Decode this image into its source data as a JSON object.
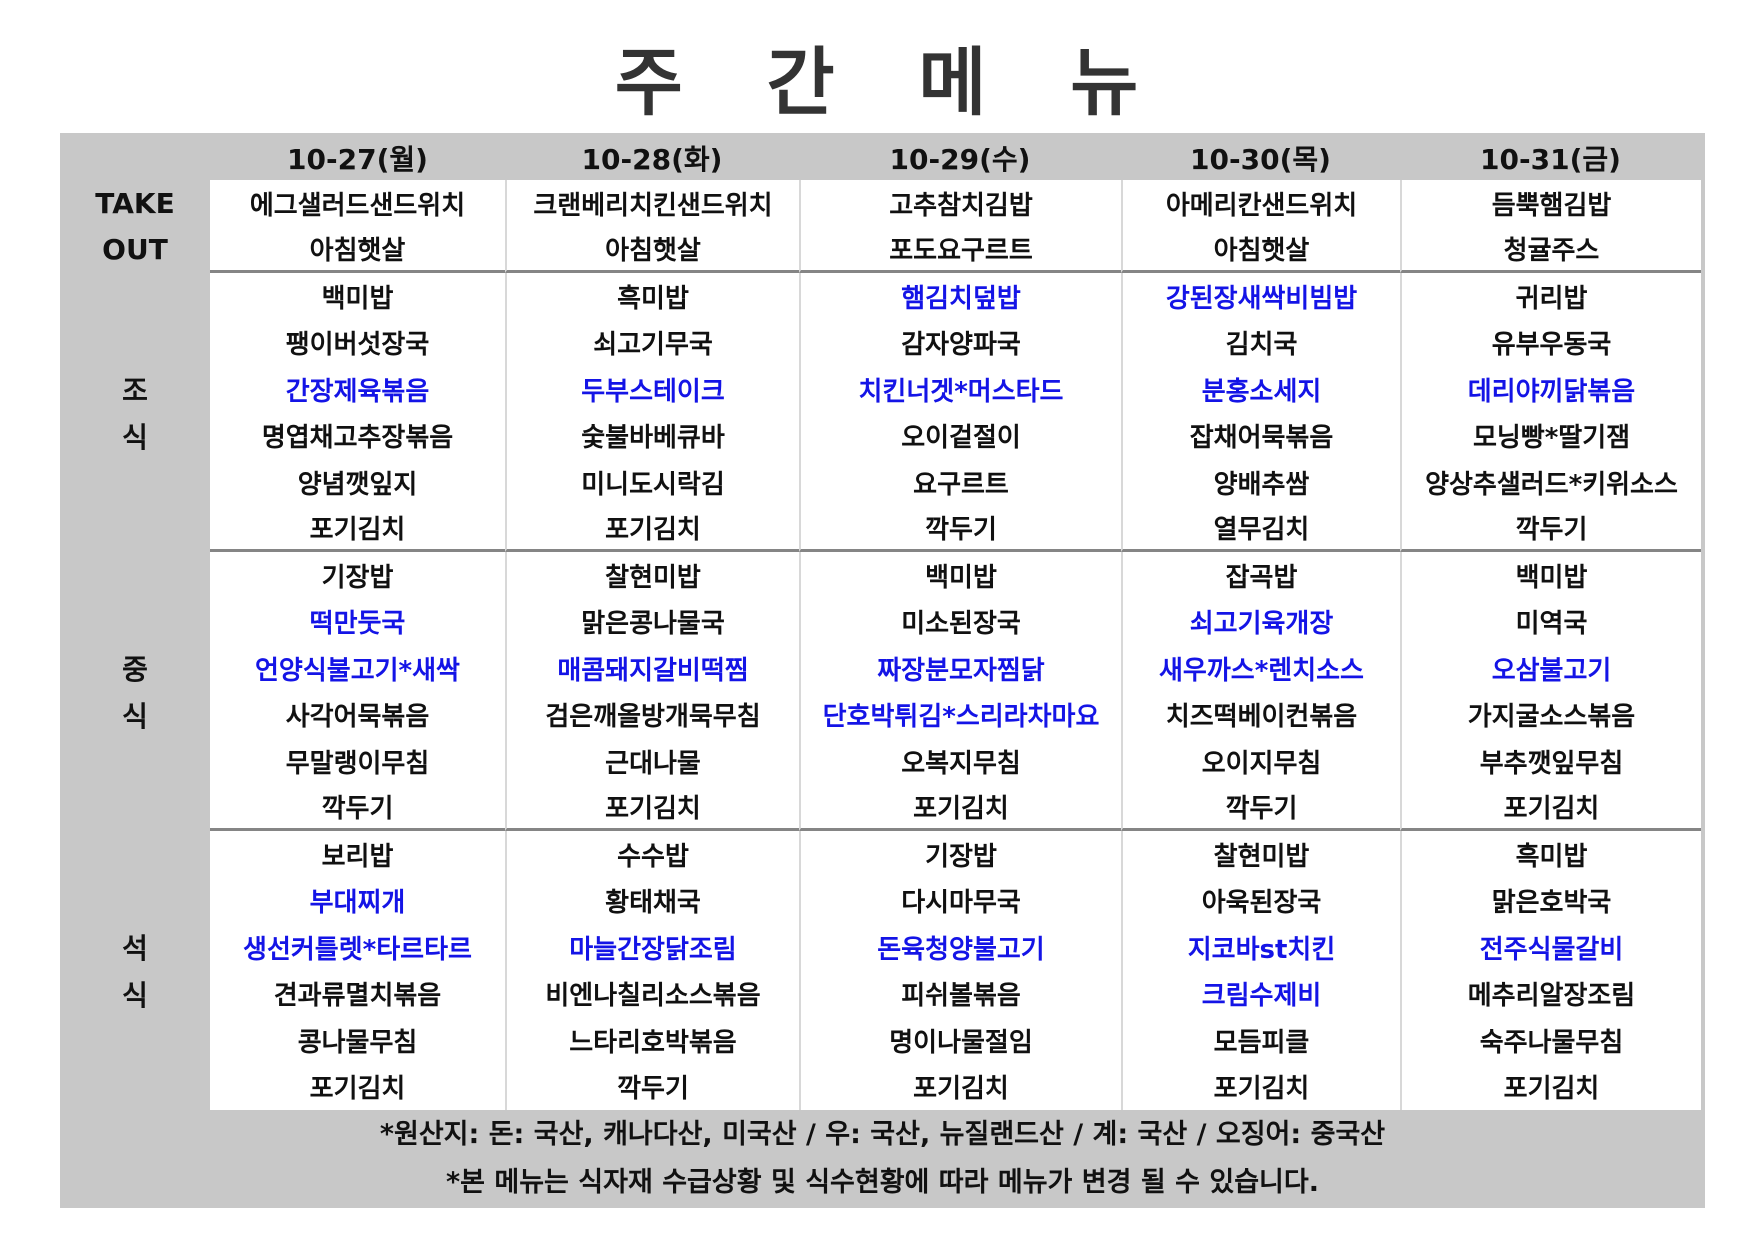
{
  "title": "주 간 메 뉴",
  "days": [
    "10-27(월)",
    "10-28(화)",
    "10-29(수)",
    "10-30(목)",
    "10-31(금)"
  ],
  "colors": {
    "highlight": "#1414e6",
    "band": "#c8c8c8",
    "divider": "#858585"
  },
  "sections": [
    {
      "id": "takeout",
      "label": [
        "TAKE",
        "OUT"
      ],
      "days": [
        [
          {
            "name": "에그샐러드샌드위치"
          },
          {
            "name": "아침햇살"
          }
        ],
        [
          {
            "name": "크랜베리치킨샌드위치"
          },
          {
            "name": "아침햇살"
          }
        ],
        [
          {
            "name": "고추참치김밥"
          },
          {
            "name": "포도요구르트"
          }
        ],
        [
          {
            "name": "아메리칸샌드위치"
          },
          {
            "name": "아침햇살"
          }
        ],
        [
          {
            "name": "듬뿍햄김밥"
          },
          {
            "name": "청귤주스"
          }
        ]
      ]
    },
    {
      "id": "breakfast",
      "label": [
        "조",
        "식"
      ],
      "days": [
        [
          {
            "name": "백미밥"
          },
          {
            "name": "팽이버섯장국"
          },
          {
            "name": "간장제육볶음",
            "blue": true
          },
          {
            "name": "명엽채고추장볶음"
          },
          {
            "name": "양념깻잎지"
          },
          {
            "name": "포기김치"
          }
        ],
        [
          {
            "name": "흑미밥"
          },
          {
            "name": "쇠고기무국"
          },
          {
            "name": "두부스테이크",
            "blue": true
          },
          {
            "name": "숯불바베큐바"
          },
          {
            "name": "미니도시락김"
          },
          {
            "name": "포기김치"
          }
        ],
        [
          {
            "name": "햄김치덮밥",
            "blue": true
          },
          {
            "name": "감자양파국"
          },
          {
            "name": "치킨너겟*머스타드",
            "blue": true
          },
          {
            "name": "오이겉절이"
          },
          {
            "name": "요구르트"
          },
          {
            "name": "깍두기"
          }
        ],
        [
          {
            "name": "강된장새싹비빔밥",
            "blue": true
          },
          {
            "name": "김치국"
          },
          {
            "name": "분홍소세지",
            "blue": true
          },
          {
            "name": "잡채어묵볶음"
          },
          {
            "name": "양배추쌈"
          },
          {
            "name": "열무김치"
          }
        ],
        [
          {
            "name": "귀리밥"
          },
          {
            "name": "유부우동국"
          },
          {
            "name": "데리야끼닭볶음",
            "blue": true
          },
          {
            "name": "모닝빵*딸기잼"
          },
          {
            "name": "양상추샐러드*키위소스"
          },
          {
            "name": "깍두기"
          }
        ]
      ]
    },
    {
      "id": "lunch",
      "label": [
        "중",
        "식"
      ],
      "days": [
        [
          {
            "name": "기장밥"
          },
          {
            "name": "떡만둣국",
            "blue": true
          },
          {
            "name": "언양식불고기*새싹",
            "blue": true
          },
          {
            "name": "사각어묵볶음"
          },
          {
            "name": "무말랭이무침"
          },
          {
            "name": "깍두기"
          }
        ],
        [
          {
            "name": "찰현미밥"
          },
          {
            "name": "맑은콩나물국"
          },
          {
            "name": "매콤돼지갈비떡찜",
            "blue": true
          },
          {
            "name": "검은깨올방개묵무침"
          },
          {
            "name": "근대나물"
          },
          {
            "name": "포기김치"
          }
        ],
        [
          {
            "name": "백미밥"
          },
          {
            "name": "미소된장국"
          },
          {
            "name": "짜장분모자찜닭",
            "blue": true
          },
          {
            "name": "단호박튀김*스리라차마요",
            "blue": true
          },
          {
            "name": "오복지무침"
          },
          {
            "name": "포기김치"
          }
        ],
        [
          {
            "name": "잡곡밥"
          },
          {
            "name": "쇠고기육개장",
            "blue": true
          },
          {
            "name": "새우까스*렌치소스",
            "blue": true
          },
          {
            "name": "치즈떡베이컨볶음"
          },
          {
            "name": "오이지무침"
          },
          {
            "name": "깍두기"
          }
        ],
        [
          {
            "name": "백미밥"
          },
          {
            "name": "미역국"
          },
          {
            "name": "오삼불고기",
            "blue": true
          },
          {
            "name": "가지굴소스볶음"
          },
          {
            "name": "부추깻잎무침"
          },
          {
            "name": "포기김치"
          }
        ]
      ]
    },
    {
      "id": "dinner",
      "label": [
        "석",
        "식"
      ],
      "days": [
        [
          {
            "name": "보리밥"
          },
          {
            "name": "부대찌개",
            "blue": true
          },
          {
            "name": "생선커틀렛*타르타르",
            "blue": true
          },
          {
            "name": "견과류멸치볶음"
          },
          {
            "name": "콩나물무침"
          },
          {
            "name": "포기김치"
          }
        ],
        [
          {
            "name": "수수밥"
          },
          {
            "name": "황태채국"
          },
          {
            "name": "마늘간장닭조림",
            "blue": true
          },
          {
            "name": "비엔나칠리소스볶음"
          },
          {
            "name": "느타리호박볶음"
          },
          {
            "name": "깍두기"
          }
        ],
        [
          {
            "name": "기장밥"
          },
          {
            "name": "다시마무국"
          },
          {
            "name": "돈육청양불고기",
            "blue": true
          },
          {
            "name": "피쉬볼볶음"
          },
          {
            "name": "명이나물절임"
          },
          {
            "name": "포기김치"
          }
        ],
        [
          {
            "name": "찰현미밥"
          },
          {
            "name": "아욱된장국"
          },
          {
            "name": "지코바st치킨",
            "blue": true
          },
          {
            "name": "크림수제비",
            "blue": true
          },
          {
            "name": "모듬피클"
          },
          {
            "name": "포기김치"
          }
        ],
        [
          {
            "name": "흑미밥"
          },
          {
            "name": "맑은호박국"
          },
          {
            "name": "전주식물갈비",
            "blue": true
          },
          {
            "name": "메추리알장조림"
          },
          {
            "name": "숙주나물무침"
          },
          {
            "name": "포기김치"
          }
        ]
      ]
    }
  ],
  "footer": {
    "origin": "*원산지: 돈: 국산, 캐나다산, 미국산 / 우: 국산, 뉴질랜드산 / 계: 국산 / 오징어: 중국산",
    "notice": "*본 메뉴는 식자재 수급상황 및 식수현황에 따라 메뉴가 변경 될 수 있습니다."
  }
}
